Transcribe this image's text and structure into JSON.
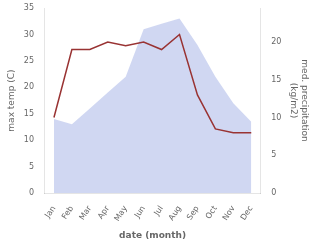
{
  "chart_data": {
    "type": "line",
    "xlabel": "date (month)",
    "ylabel": "max temp (C)",
    "y2label": "med. precipitation\n(kg/m2)",
    "categories": [
      "Jan",
      "Feb",
      "Mar",
      "Apr",
      "May",
      "Jun",
      "Jul",
      "Aug",
      "Sep",
      "Oct",
      "Nov",
      "Dec"
    ],
    "series": [
      {
        "type": "area",
        "color": "#c8d0f0",
        "values": [
          14.0,
          13.0,
          16.0,
          19.0,
          22.0,
          31.0,
          32.0,
          33.0,
          28.0,
          22.0,
          17.0,
          13.5
        ]
      },
      {
        "type": "line",
        "color": "#993333",
        "axis": "y2",
        "values": [
          10.0,
          19.0,
          19.0,
          20.0,
          19.5,
          20.0,
          19.0,
          21.0,
          13.0,
          8.5,
          8.0,
          8.0
        ]
      }
    ],
    "ylim": [
      0,
      35
    ],
    "yticks": [
      0,
      5,
      10,
      15,
      20,
      25,
      30,
      35
    ],
    "y2lim": [
      0,
      24.5
    ],
    "y2ticks": [
      0,
      5,
      10,
      15,
      20
    ],
    "grid": false
  }
}
